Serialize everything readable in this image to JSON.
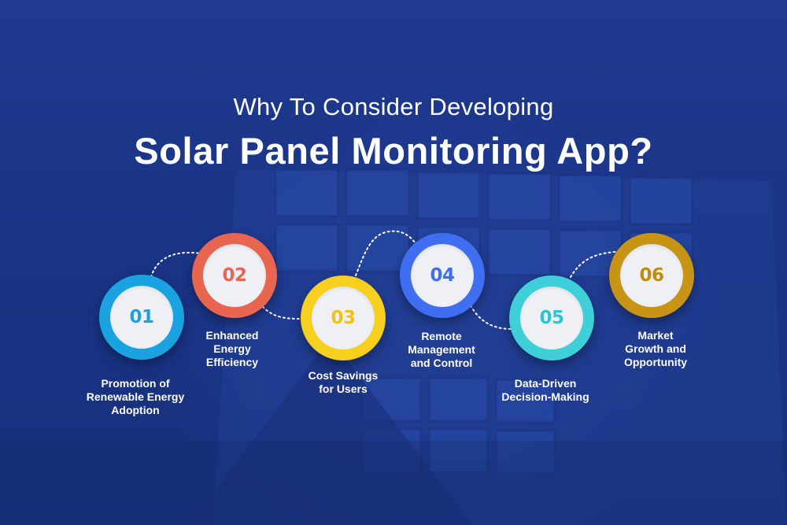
{
  "title": {
    "line1": "Why To Consider Developing",
    "line2": "Solar Panel Monitoring App?"
  },
  "steps": [
    {
      "number": "01",
      "label": "Promotion of\nRenewable Energy\nAdoption",
      "ring_color": "#1aa3e0",
      "text_color": "#1aa3e0"
    },
    {
      "number": "02",
      "label": "Enhanced\nEnergy\nEfficiency",
      "ring_color": "#e8654f",
      "text_color": "#e8654f"
    },
    {
      "number": "03",
      "label": "Cost Savings\nfor Users",
      "ring_color": "#f7cf1f",
      "text_color": "#efc21a"
    },
    {
      "number": "04",
      "label": "Remote\nManagement\nand Control",
      "ring_color": "#3f6ff0",
      "text_color": "#3f6ff0"
    },
    {
      "number": "05",
      "label": "Data-Driven\nDecision-Making",
      "ring_color": "#3fcfd8",
      "text_color": "#2fc4cf"
    },
    {
      "number": "06",
      "label": "Market\nGrowth and\nOpportunity",
      "ring_color": "#c89416",
      "text_color": "#c08c10"
    }
  ]
}
